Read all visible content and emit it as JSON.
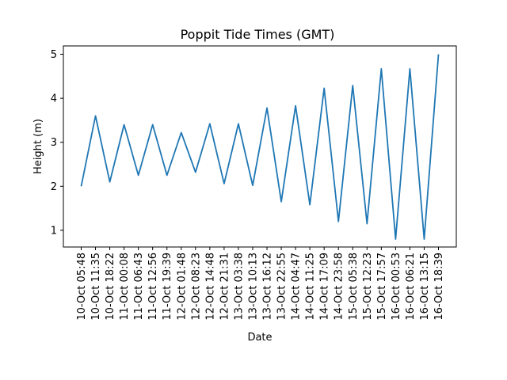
{
  "chart_data": {
    "type": "line",
    "title": "Poppit Tide Times (GMT)",
    "xlabel": "Date",
    "ylabel": "Height (m)",
    "ylim": [
      0.62,
      5.19
    ],
    "y_ticks": [
      1,
      2,
      3,
      4,
      5
    ],
    "grid": false,
    "line_color": "#1f77b4",
    "categories": [
      "10-Oct 05:48",
      "10-Oct 11:35",
      "10-Oct 18:22",
      "11-Oct 00:08",
      "11-Oct 06:43",
      "11-Oct 12:56",
      "11-Oct 19:39",
      "12-Oct 01:48",
      "12-Oct 08:23",
      "12-Oct 14:48",
      "12-Oct 21:31",
      "13-Oct 03:38",
      "13-Oct 10:13",
      "13-Oct 16:12",
      "13-Oct 22:55",
      "14-Oct 04:47",
      "14-Oct 11:25",
      "14-Oct 17:09",
      "14-Oct 23:58",
      "15-Oct 05:38",
      "15-Oct 12:23",
      "15-Oct 17:57",
      "16-Oct 00:53",
      "16-Oct 06:21",
      "16-Oct 13:15",
      "16-Oct 18:39"
    ],
    "values": [
      2.0,
      3.6,
      2.1,
      3.4,
      2.25,
      3.4,
      2.25,
      3.22,
      2.32,
      3.42,
      2.06,
      3.42,
      2.02,
      3.78,
      1.65,
      3.83,
      1.58,
      4.23,
      1.2,
      4.29,
      1.15,
      4.67,
      0.8,
      4.67,
      0.8,
      5.0
    ]
  }
}
